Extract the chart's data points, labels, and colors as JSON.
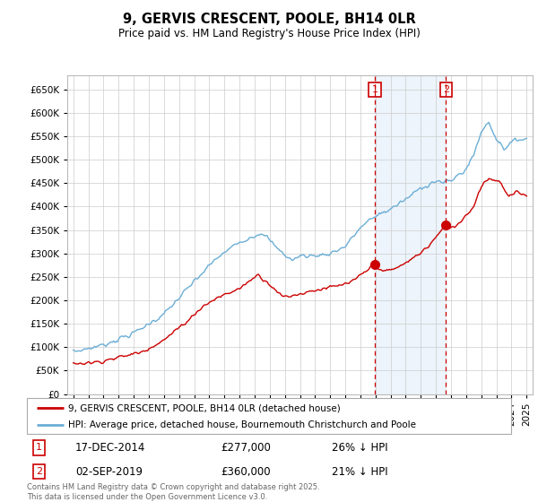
{
  "title": "9, GERVIS CRESCENT, POOLE, BH14 0LR",
  "subtitle": "Price paid vs. HM Land Registry's House Price Index (HPI)",
  "hpi_color": "#6baed6",
  "price_color": "#cc0000",
  "shade_color": "#ddeeff",
  "annotation1_date": "17-DEC-2014",
  "annotation1_price": "£277,000",
  "annotation1_pct": "26% ↓ HPI",
  "annotation2_date": "02-SEP-2019",
  "annotation2_price": "£360,000",
  "annotation2_pct": "21% ↓ HPI",
  "legend1": "9, GERVIS CRESCENT, POOLE, BH14 0LR (detached house)",
  "legend2": "HPI: Average price, detached house, Bournemouth Christchurch and Poole",
  "footer": "Contains HM Land Registry data © Crown copyright and database right 2025.\nThis data is licensed under the Open Government Licence v3.0.",
  "ylim": [
    0,
    680000
  ],
  "yticks": [
    0,
    50000,
    100000,
    150000,
    200000,
    250000,
    300000,
    350000,
    400000,
    450000,
    500000,
    550000,
    600000,
    650000
  ],
  "ytick_labels": [
    "£0",
    "£50K",
    "£100K",
    "£150K",
    "£200K",
    "£250K",
    "£300K",
    "£350K",
    "£400K",
    "£450K",
    "£500K",
    "£550K",
    "£600K",
    "£650K"
  ],
  "sale1_x": 2014.96,
  "sale1_y": 277000,
  "sale2_x": 2019.67,
  "sale2_y": 360000,
  "vline1_x": 2014.96,
  "vline2_x": 2019.67,
  "xlim_left": 1994.6,
  "xlim_right": 2025.4
}
